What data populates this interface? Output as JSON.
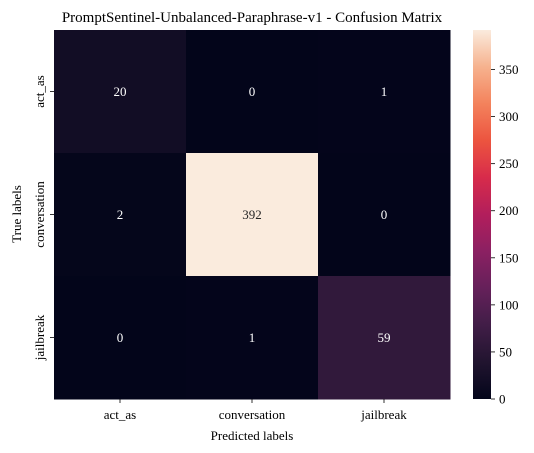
{
  "chart_data": {
    "type": "heatmap",
    "title": "PromptSentinel-Unbalanced-Paraphrase-v1 - Confusion Matrix",
    "xlabel": "Predicted labels",
    "ylabel": "True labels",
    "x_categories": [
      "act_as",
      "conversation",
      "jailbreak"
    ],
    "y_categories": [
      "act_as",
      "conversation",
      "jailbreak"
    ],
    "values": [
      [
        20,
        0,
        1
      ],
      [
        2,
        392,
        0
      ],
      [
        0,
        1,
        59
      ]
    ],
    "colorbar": {
      "vmin": 0,
      "vmax": 392,
      "ticks": [
        0,
        50,
        100,
        150,
        200,
        250,
        300,
        350
      ]
    },
    "colormap": "rocket"
  }
}
